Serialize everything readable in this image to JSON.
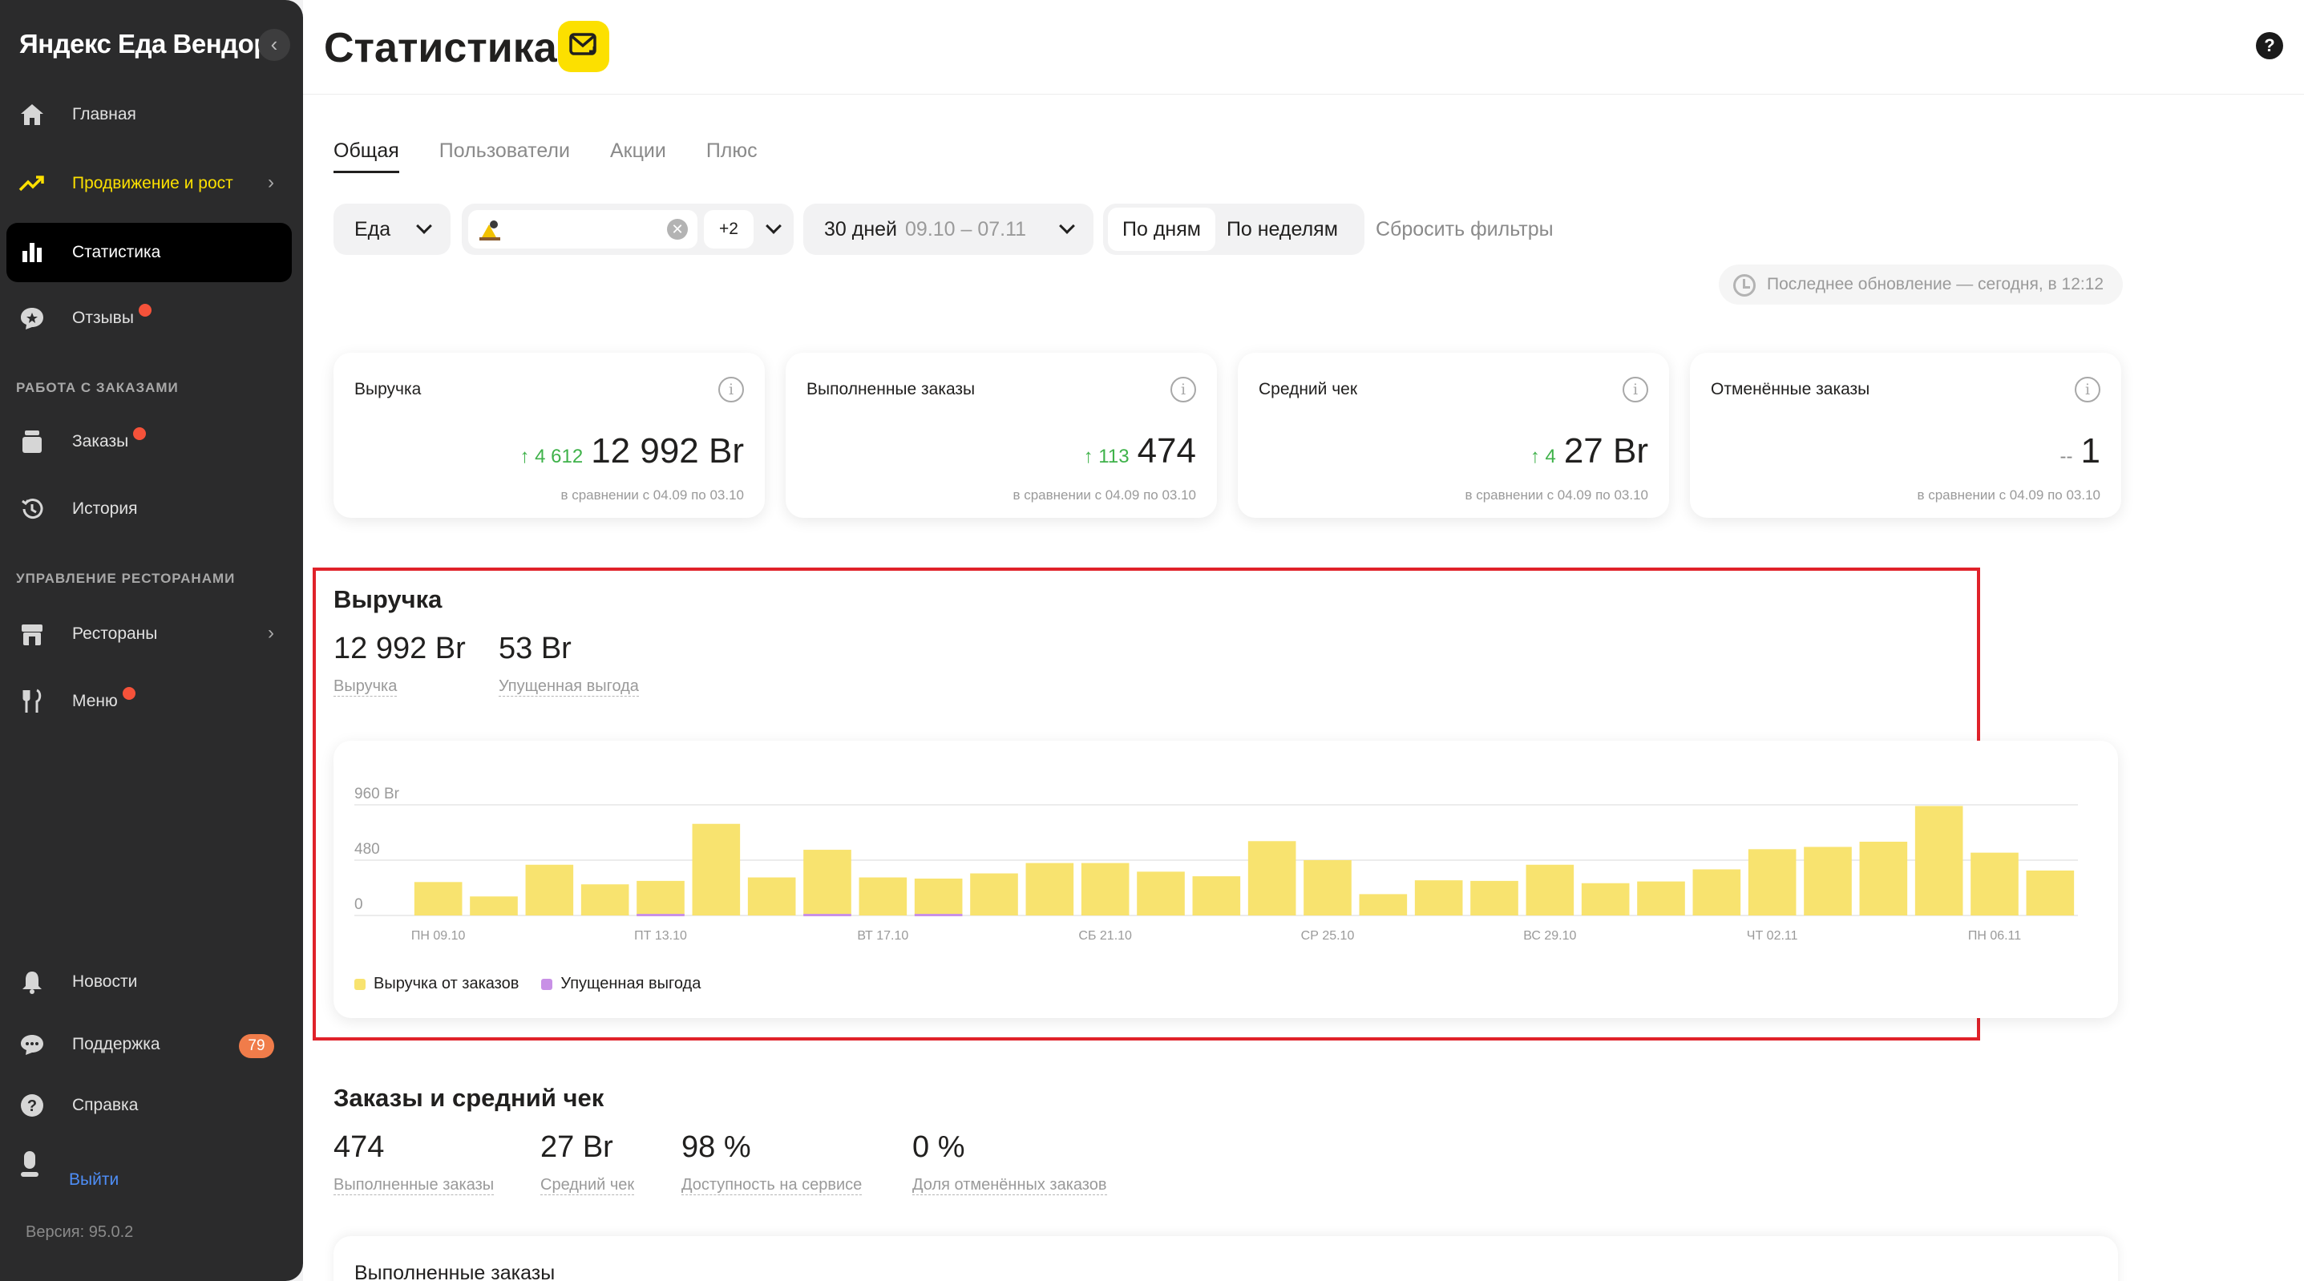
{
  "sidebar": {
    "brand": "Яндекс Еда Вендор",
    "items": [
      {
        "label": "Главная"
      },
      {
        "label": "Продвижение и рост"
      },
      {
        "label": "Статистика"
      },
      {
        "label": "Отзывы"
      }
    ],
    "section_orders": "РАБОТА С ЗАКАЗАМИ",
    "orders_items": [
      {
        "label": "Заказы"
      },
      {
        "label": "История"
      }
    ],
    "section_restaurants": "УПРАВЛЕНИЕ РЕСТОРАНАМИ",
    "restaurant_items": [
      {
        "label": "Рестораны"
      },
      {
        "label": "Меню"
      }
    ],
    "bottom_items": [
      {
        "label": "Новости"
      },
      {
        "label": "Поддержка",
        "badge": "79"
      },
      {
        "label": "Справка"
      }
    ],
    "logout": "Выйти",
    "version": "Версия: 95.0.2"
  },
  "header": {
    "title": "Статистика",
    "help": "?"
  },
  "tabs": [
    {
      "label": "Общая"
    },
    {
      "label": "Пользователи"
    },
    {
      "label": "Акции"
    },
    {
      "label": "Плюс"
    }
  ],
  "filters": {
    "service": "Еда",
    "places_more": "+2",
    "period_label": "30 дней",
    "period_range": "09.10 – 07.11",
    "by_days": "По дням",
    "by_weeks": "По неделям",
    "reset": "Сбросить фильтры"
  },
  "last_update": "Последнее обновление — сегодня, в 12:12",
  "cards": [
    {
      "title": "Выручка",
      "delta": "↑ 4 612",
      "value": "12 992 Br",
      "compare": "в сравнении с 04.09 по 03.10"
    },
    {
      "title": "Выполненные заказы",
      "delta": "↑ 113",
      "value": "474",
      "compare": "в сравнении с 04.09 по 03.10"
    },
    {
      "title": "Средний чек",
      "delta": "↑ 4",
      "value": "27 Br",
      "compare": "в сравнении с 04.09 по 03.10"
    },
    {
      "title": "Отменённые заказы",
      "delta": "--",
      "value": "1",
      "compare": "в сравнении с 04.09 по 03.10"
    }
  ],
  "revenue": {
    "title": "Выручка",
    "metrics": [
      {
        "value": "12 992 Br",
        "label": "Выручка"
      },
      {
        "value": "53 Br",
        "label": "Упущенная выгода"
      }
    ]
  },
  "chart_data": {
    "type": "bar",
    "y_tick_labels": [
      "960 Br",
      "480",
      "0"
    ],
    "ylim": [
      0,
      960
    ],
    "x_tick_labels": [
      "ПН 09.10",
      "ПТ 13.10",
      "ВТ 17.10",
      "СБ 21.10",
      "СР 25.10",
      "ВС 29.10",
      "ЧТ 02.11",
      "ПН 06.11"
    ],
    "categories": [
      "09.10",
      "10.10",
      "11.10",
      "12.10",
      "13.10",
      "14.10",
      "15.10",
      "16.10",
      "17.10",
      "18.10",
      "19.10",
      "20.10",
      "21.10",
      "22.10",
      "23.10",
      "24.10",
      "25.10",
      "26.10",
      "27.10",
      "28.10",
      "29.10",
      "30.10",
      "31.10",
      "01.11",
      "02.11",
      "03.11",
      "04.11",
      "05.11",
      "06.11",
      "07.11"
    ],
    "series": [
      {
        "name": "Выручка от заказов",
        "color": "#f8e36f",
        "values": [
          290,
          165,
          440,
          270,
          300,
          795,
          330,
          570,
          330,
          320,
          365,
          455,
          455,
          380,
          340,
          645,
          480,
          185,
          305,
          300,
          440,
          280,
          295,
          400,
          575,
          595,
          640,
          950,
          545,
          390
        ]
      },
      {
        "name": "Упущенная выгода",
        "color": "#c890e6",
        "values": [
          0,
          0,
          0,
          0,
          14,
          0,
          0,
          14,
          0,
          14,
          0,
          0,
          0,
          0,
          0,
          0,
          0,
          0,
          0,
          0,
          0,
          0,
          0,
          0,
          0,
          0,
          0,
          0,
          0,
          0
        ]
      }
    ],
    "grid": true,
    "legend": "bottom-left"
  },
  "orders": {
    "title": "Заказы и средний чек",
    "metrics": [
      {
        "value": "474",
        "label": "Выполненные заказы"
      },
      {
        "value": "27 Br",
        "label": "Средний чек"
      },
      {
        "value": "98 %",
        "label": "Доступность на сервисе"
      },
      {
        "value": "0 %",
        "label": "Доля отменённых заказов"
      }
    ],
    "next_card_title": "Выполненные заказы"
  }
}
